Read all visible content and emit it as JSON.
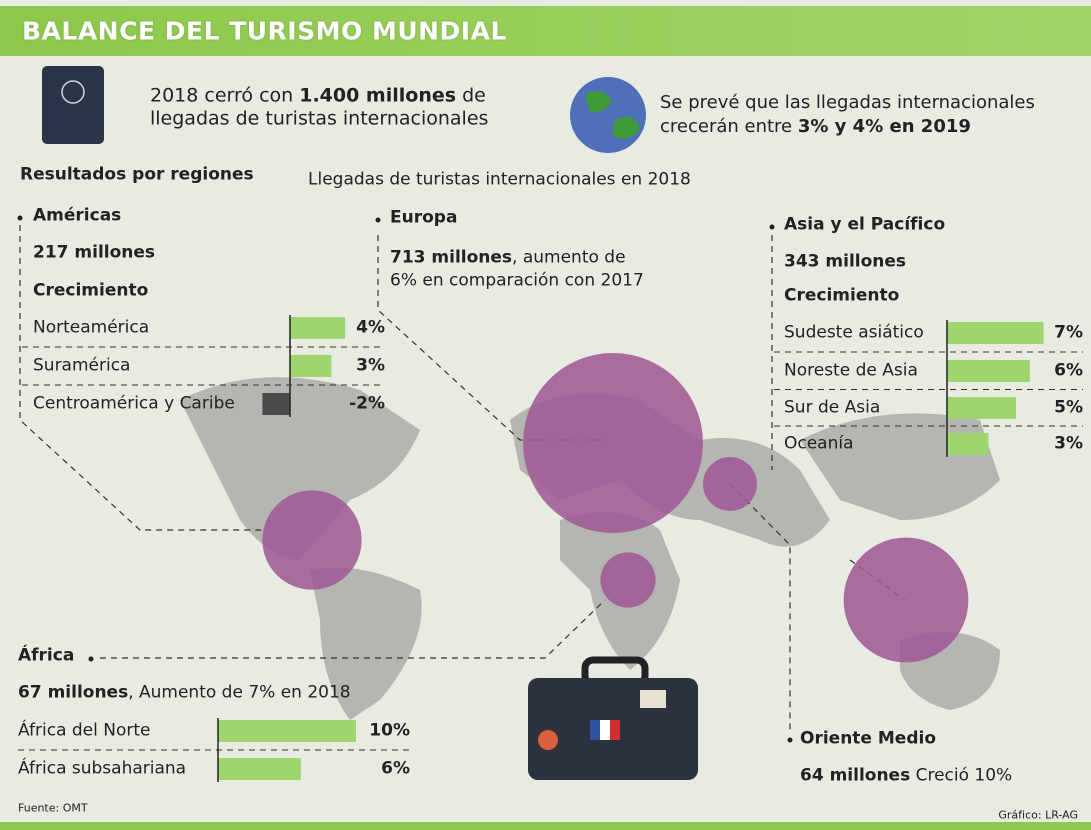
{
  "title": "BALANCE DEL TURISMO MUNDIAL",
  "intro_left": {
    "line1": [
      "2018 cerró con ",
      "1.400 millones",
      " de"
    ],
    "line2": "llegadas de turistas internacionales"
  },
  "intro_right": {
    "line1": "Se prevé que las llegadas internacionales",
    "line2": [
      "crecerán entre ",
      "3% y 4% en 2019"
    ]
  },
  "section_title": "Resultados por regiones",
  "section_subtitle": "Llegadas de turistas internacionales en 2018",
  "bar_color": "#9dd66f",
  "negative_bar_color": "#4a4a4a",
  "bubble_color": "#a05a95",
  "regions": {
    "americas": {
      "name": "Américas",
      "arrivals": 217,
      "arrivals_label": "217 millones",
      "growth_label": "Crecimiento",
      "items": [
        {
          "name": "Norteamérica",
          "value": 4,
          "value_label": "4%"
        },
        {
          "name": "Suramérica",
          "value": 3,
          "value_label": "3%"
        },
        {
          "name": "Centroamérica y Caribe",
          "value": -2,
          "value_label": "-2%"
        }
      ]
    },
    "europe": {
      "name": "Europa",
      "arrivals": 713,
      "arrivals_label": "713 millones",
      "detail_lines": [
        ", aumento de",
        "6% en comparación con 2017"
      ]
    },
    "asia": {
      "name": "Asia y el Pacífico",
      "arrivals": 343,
      "arrivals_label": "343 millones",
      "growth_label": "Crecimiento",
      "items": [
        {
          "name": "Sudeste asiático",
          "value": 7,
          "value_label": "7%"
        },
        {
          "name": "Noreste de Asia",
          "value": 6,
          "value_label": "6%"
        },
        {
          "name": "Sur de Asia",
          "value": 5,
          "value_label": "5%"
        },
        {
          "name": "Oceanía",
          "value": 3,
          "value_label": "3%"
        }
      ]
    },
    "africa": {
      "name": "África",
      "arrivals": 67,
      "arrivals_label": "67 millones",
      "detail": ", Aumento de 7% en 2018",
      "items": [
        {
          "name": "África del Norte",
          "value": 10,
          "value_label": "10%"
        },
        {
          "name": "África subsahariana",
          "value": 6,
          "value_label": "6%"
        }
      ]
    },
    "middle_east": {
      "name": "Oriente Medio",
      "arrivals": 64,
      "arrivals_label": "64 millones",
      "detail": " Creció 10%"
    }
  },
  "source": "Fuente: OMT",
  "credit": "Gráfico: LR-AG"
}
